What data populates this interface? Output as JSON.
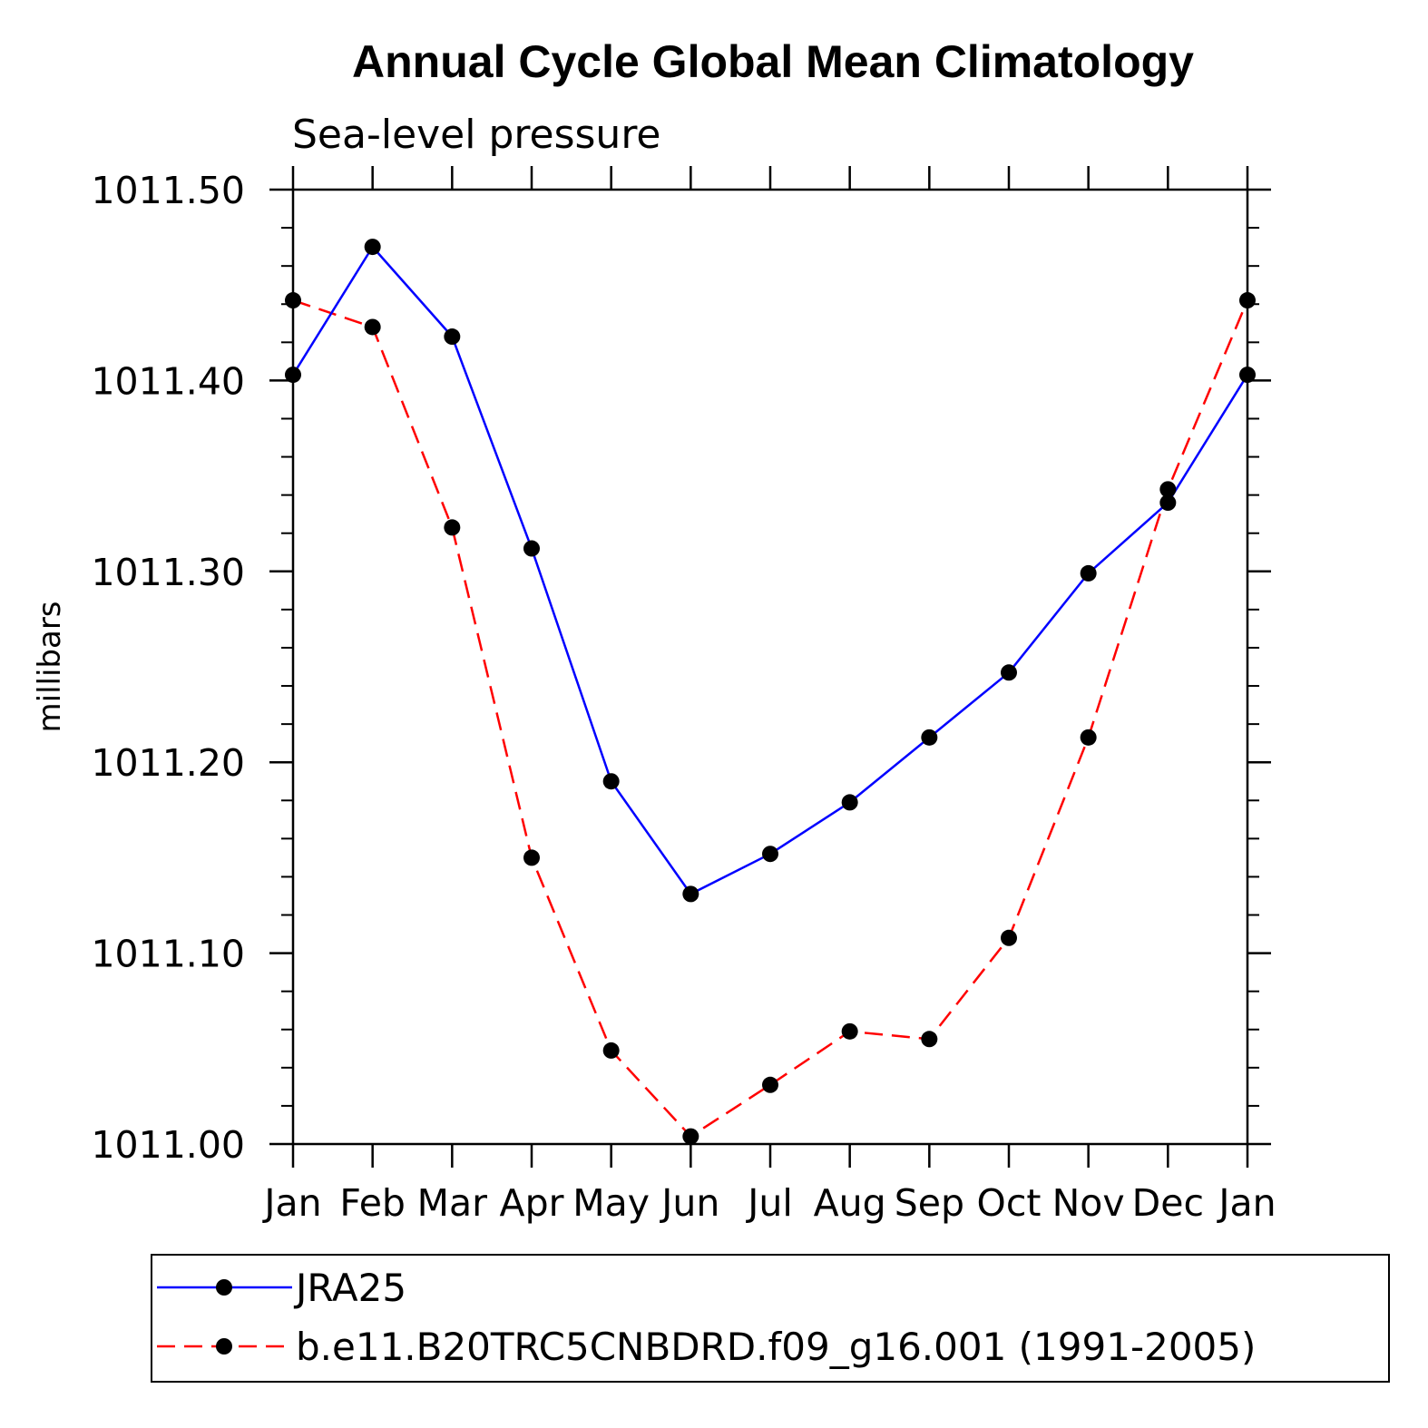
{
  "chart_data": {
    "type": "line",
    "title": "Annual Cycle Global Mean Climatology",
    "subtitle": "Sea-level pressure",
    "xlabel": "",
    "ylabel": "millibars",
    "categories": [
      "Jan",
      "Feb",
      "Mar",
      "Apr",
      "May",
      "Jun",
      "Jul",
      "Aug",
      "Sep",
      "Oct",
      "Nov",
      "Dec",
      "Jan"
    ],
    "ylim": [
      1011.0,
      1011.5
    ],
    "yticks": [
      "1011.00",
      "1011.10",
      "1011.20",
      "1011.30",
      "1011.40",
      "1011.50"
    ],
    "ytick_values": [
      1011.0,
      1011.1,
      1011.2,
      1011.3,
      1011.4,
      1011.5
    ],
    "series": [
      {
        "name": "JRA25",
        "color": "#0000ff",
        "dash": "solid",
        "values": [
          1011.403,
          1011.47,
          1011.423,
          1011.312,
          1011.19,
          1011.131,
          1011.152,
          1011.179,
          1011.213,
          1011.247,
          1011.299,
          1011.336,
          1011.403
        ]
      },
      {
        "name": "b.e11.B20TRC5CNBDRD.f09_g16.001 (1991-2005)",
        "color": "#ff0000",
        "dash": "dashed",
        "values": [
          1011.442,
          1011.428,
          1011.323,
          1011.15,
          1011.049,
          1011.004,
          1011.031,
          1011.059,
          1011.055,
          1011.108,
          1011.213,
          1011.343,
          1011.442
        ]
      }
    ],
    "legend_position": "bottom"
  }
}
